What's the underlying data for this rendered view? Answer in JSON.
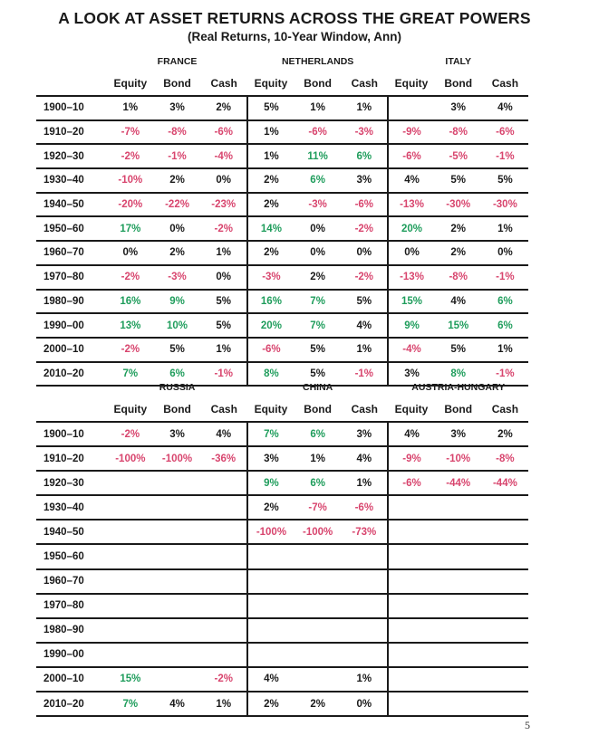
{
  "title": "A LOOK AT ASSET RETURNS ACROSS THE GREAT POWERS",
  "subtitle": "(Real Returns, 10-Year Window, Ann)",
  "page_number": "5",
  "colors": {
    "negative": "#d8456e",
    "strong_positive": "#1f9d5c",
    "neutral": "#1a1a1a"
  },
  "sub_headers": [
    "Equity",
    "Bond",
    "Cash"
  ],
  "tables": [
    {
      "countries": [
        "FRANCE",
        "NETHERLANDS",
        "ITALY"
      ],
      "rows": [
        {
          "period": "1900–10",
          "values": [
            "1%",
            "3%",
            "2%",
            "5%",
            "1%",
            "1%",
            "",
            "3%",
            "4%"
          ]
        },
        {
          "period": "1910–20",
          "values": [
            "-7%",
            "-8%",
            "-6%",
            "1%",
            "-6%",
            "-3%",
            "-9%",
            "-8%",
            "-6%"
          ]
        },
        {
          "period": "1920–30",
          "values": [
            "-2%",
            "-1%",
            "-4%",
            "1%",
            "11%",
            "6%",
            "-6%",
            "-5%",
            "-1%"
          ]
        },
        {
          "period": "1930–40",
          "values": [
            "-10%",
            "2%",
            "0%",
            "2%",
            "6%",
            "3%",
            "4%",
            "5%",
            "5%"
          ]
        },
        {
          "period": "1940–50",
          "values": [
            "-20%",
            "-22%",
            "-23%",
            "2%",
            "-3%",
            "-6%",
            "-13%",
            "-30%",
            "-30%"
          ]
        },
        {
          "period": "1950–60",
          "values": [
            "17%",
            "0%",
            "-2%",
            "14%",
            "0%",
            "-2%",
            "20%",
            "2%",
            "1%"
          ]
        },
        {
          "period": "1960–70",
          "values": [
            "0%",
            "2%",
            "1%",
            "2%",
            "0%",
            "0%",
            "0%",
            "2%",
            "0%"
          ]
        },
        {
          "period": "1970–80",
          "values": [
            "-2%",
            "-3%",
            "0%",
            "-3%",
            "2%",
            "-2%",
            "-13%",
            "-8%",
            "-1%"
          ]
        },
        {
          "period": "1980–90",
          "values": [
            "16%",
            "9%",
            "5%",
            "16%",
            "7%",
            "5%",
            "15%",
            "4%",
            "6%"
          ]
        },
        {
          "period": "1990–00",
          "values": [
            "13%",
            "10%",
            "5%",
            "20%",
            "7%",
            "4%",
            "9%",
            "15%",
            "6%"
          ]
        },
        {
          "period": "2000–10",
          "values": [
            "-2%",
            "5%",
            "1%",
            "-6%",
            "5%",
            "1%",
            "-4%",
            "5%",
            "1%"
          ]
        },
        {
          "period": "2010–20",
          "values": [
            "7%",
            "6%",
            "-1%",
            "8%",
            "5%",
            "-1%",
            "3%",
            "8%",
            "-1%"
          ]
        }
      ]
    },
    {
      "countries": [
        "RUSSIA",
        "CHINA",
        "AUSTRIA-HUNGARY"
      ],
      "rows": [
        {
          "period": "1900–10",
          "values": [
            "-2%",
            "3%",
            "4%",
            "7%",
            "6%",
            "3%",
            "4%",
            "3%",
            "2%"
          ]
        },
        {
          "period": "1910–20",
          "values": [
            "-100%",
            "-100%",
            "-36%",
            "3%",
            "1%",
            "4%",
            "-9%",
            "-10%",
            "-8%"
          ]
        },
        {
          "period": "1920–30",
          "values": [
            "",
            "",
            "",
            "9%",
            "6%",
            "1%",
            "-6%",
            "-44%",
            "-44%"
          ]
        },
        {
          "period": "1930–40",
          "values": [
            "",
            "",
            "",
            "2%",
            "-7%",
            "-6%",
            "",
            "",
            ""
          ]
        },
        {
          "period": "1940–50",
          "values": [
            "",
            "",
            "",
            "-100%",
            "-100%",
            "-73%",
            "",
            "",
            ""
          ]
        },
        {
          "period": "1950–60",
          "values": [
            "",
            "",
            "",
            "",
            "",
            "",
            "",
            "",
            ""
          ]
        },
        {
          "period": "1960–70",
          "values": [
            "",
            "",
            "",
            "",
            "",
            "",
            "",
            "",
            ""
          ]
        },
        {
          "period": "1970–80",
          "values": [
            "",
            "",
            "",
            "",
            "",
            "",
            "",
            "",
            ""
          ]
        },
        {
          "period": "1980–90",
          "values": [
            "",
            "",
            "",
            "",
            "",
            "",
            "",
            "",
            ""
          ]
        },
        {
          "period": "1990–00",
          "values": [
            "",
            "",
            "",
            "",
            "",
            "",
            "",
            "",
            ""
          ]
        },
        {
          "period": "2000–10",
          "values": [
            "15%",
            "",
            "-2%",
            "4%",
            "",
            "1%",
            "",
            "",
            ""
          ]
        },
        {
          "period": "2010–20",
          "values": [
            "7%",
            "4%",
            "1%",
            "2%",
            "2%",
            "0%",
            "",
            "",
            ""
          ]
        }
      ]
    }
  ]
}
